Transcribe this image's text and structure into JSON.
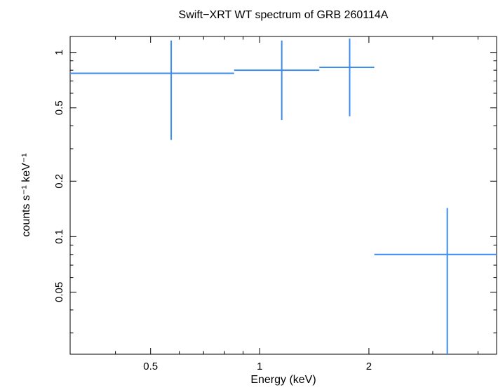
{
  "chart_data": {
    "type": "scatter",
    "title": "Swift−XRT WT spectrum of GRB 260114A",
    "xlabel": "Energy (keV)",
    "ylabel": "counts s⁻¹ keV⁻¹",
    "xscale": "log",
    "yscale": "log",
    "xlim": [
      0.3,
      4.5
    ],
    "ylim": [
      0.023,
      1.22
    ],
    "grid": false,
    "legend": "none",
    "axis_color": "#000000",
    "background": "#ffffff",
    "marker_color": "#3d8cf2",
    "xticks": [
      {
        "value": 0.5,
        "label": "0.5"
      },
      {
        "value": 1,
        "label": "1"
      },
      {
        "value": 2,
        "label": "2"
      }
    ],
    "yticks": [
      {
        "value": 1,
        "label": "1"
      },
      {
        "value": 0.5,
        "label": "0.5"
      },
      {
        "value": 0.2,
        "label": "0.2"
      },
      {
        "value": 0.1,
        "label": "0.1"
      },
      {
        "value": 0.05,
        "label": "0.05"
      }
    ],
    "points": [
      {
        "x": 0.57,
        "x_lo": 0.3,
        "x_hi": 0.85,
        "y": 0.77,
        "y_lo": 0.335,
        "y_hi": 1.16
      },
      {
        "x": 1.15,
        "x_lo": 0.85,
        "x_hi": 1.46,
        "y": 0.8,
        "y_lo": 0.43,
        "y_hi": 1.16
      },
      {
        "x": 1.77,
        "x_lo": 1.46,
        "x_hi": 2.07,
        "y": 0.83,
        "y_lo": 0.45,
        "y_hi": 1.19
      },
      {
        "x": 3.29,
        "x_lo": 2.07,
        "x_hi": 4.5,
        "y": 0.08,
        "y_lo": 0.023,
        "y_hi": 0.143
      }
    ]
  }
}
